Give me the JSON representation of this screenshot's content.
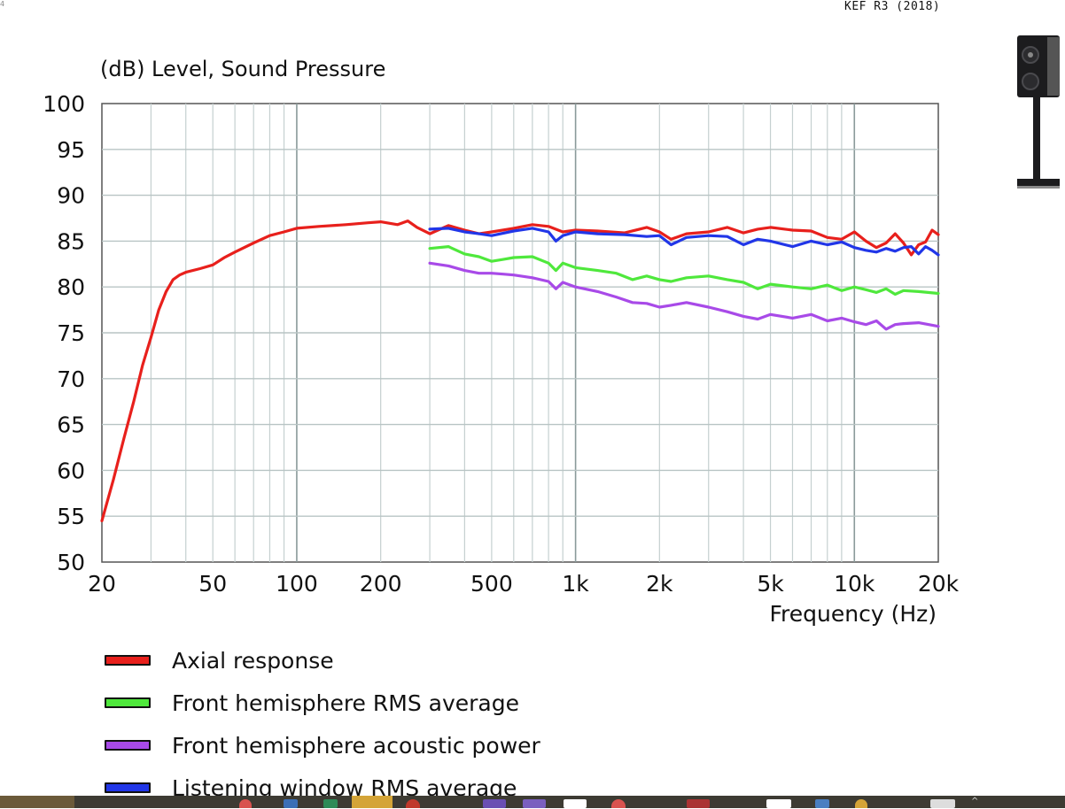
{
  "header": {
    "title": "KEF R3 (2018)",
    "corner_mark": "4"
  },
  "chart_data": {
    "type": "line",
    "title": "(dB)  Level, Sound Pressure",
    "xlabel": "Frequency  (Hz)",
    "ylabel": "(dB)",
    "xscale": "log",
    "xlim": [
      20,
      20000
    ],
    "ylim": [
      50,
      100
    ],
    "yticks": [
      100,
      95,
      90,
      85,
      80,
      75,
      70,
      65,
      60,
      55,
      50
    ],
    "xticks": [
      {
        "value": 20,
        "label": "20"
      },
      {
        "value": 50,
        "label": "50"
      },
      {
        "value": 100,
        "label": "100"
      },
      {
        "value": 200,
        "label": "200"
      },
      {
        "value": 500,
        "label": "500"
      },
      {
        "value": 1000,
        "label": "1k"
      },
      {
        "value": 2000,
        "label": "2k"
      },
      {
        "value": 5000,
        "label": "5k"
      },
      {
        "value": 10000,
        "label": "10k"
      },
      {
        "value": 20000,
        "label": "20k"
      }
    ],
    "grid": true,
    "series": [
      {
        "name": "Axial response",
        "color": "#e8201c",
        "x": [
          20,
          22,
          24,
          26,
          28,
          30,
          32,
          34,
          36,
          38,
          40,
          45,
          50,
          55,
          60,
          70,
          80,
          90,
          100,
          120,
          150,
          180,
          200,
          230,
          250,
          270,
          300,
          350,
          400,
          450,
          500,
          600,
          700,
          800,
          900,
          1000,
          1200,
          1500,
          1800,
          2000,
          2200,
          2500,
          3000,
          3500,
          4000,
          4500,
          5000,
          6000,
          7000,
          8000,
          9000,
          10000,
          11000,
          12000,
          13000,
          14000,
          15000,
          16000,
          17000,
          18000,
          19000,
          20000
        ],
        "y": [
          54.5,
          59.0,
          63.5,
          67.5,
          71.5,
          74.5,
          77.5,
          79.5,
          80.8,
          81.3,
          81.6,
          82.0,
          82.4,
          83.2,
          83.8,
          84.8,
          85.6,
          86.0,
          86.4,
          86.6,
          86.8,
          87.0,
          87.1,
          86.8,
          87.2,
          86.5,
          85.8,
          86.7,
          86.2,
          85.8,
          86.0,
          86.4,
          86.8,
          86.6,
          86.0,
          86.2,
          86.1,
          85.9,
          86.5,
          86.0,
          85.2,
          85.8,
          86.0,
          86.5,
          85.9,
          86.3,
          86.5,
          86.2,
          86.1,
          85.4,
          85.2,
          86.0,
          85.0,
          84.3,
          84.8,
          85.8,
          84.8,
          83.5,
          84.6,
          84.9,
          86.2,
          85.7
        ]
      },
      {
        "name": "Front hemisphere RMS average",
        "color": "#4fe83c",
        "x": [
          300,
          350,
          400,
          450,
          500,
          550,
          600,
          700,
          800,
          850,
          900,
          1000,
          1200,
          1400,
          1600,
          1800,
          2000,
          2200,
          2500,
          3000,
          3500,
          4000,
          4500,
          5000,
          6000,
          7000,
          8000,
          9000,
          10000,
          11000,
          12000,
          13000,
          14000,
          15000,
          17000,
          20000
        ],
        "y": [
          84.2,
          84.4,
          83.6,
          83.3,
          82.8,
          83.0,
          83.2,
          83.3,
          82.6,
          81.8,
          82.6,
          82.1,
          81.8,
          81.5,
          80.8,
          81.2,
          80.8,
          80.6,
          81.0,
          81.2,
          80.8,
          80.5,
          79.8,
          80.3,
          80.0,
          79.8,
          80.2,
          79.6,
          80.0,
          79.7,
          79.4,
          79.8,
          79.2,
          79.6,
          79.5,
          79.3
        ]
      },
      {
        "name": "Front hemisphere acoustic power",
        "color": "#a84ae8",
        "x": [
          300,
          350,
          400,
          450,
          500,
          550,
          600,
          700,
          800,
          850,
          900,
          1000,
          1200,
          1400,
          1600,
          1800,
          2000,
          2200,
          2500,
          3000,
          3500,
          4000,
          4500,
          5000,
          6000,
          7000,
          8000,
          9000,
          10000,
          11000,
          12000,
          13000,
          14000,
          15000,
          17000,
          20000
        ],
        "y": [
          82.6,
          82.3,
          81.8,
          81.5,
          81.5,
          81.4,
          81.3,
          81.0,
          80.6,
          79.8,
          80.5,
          80.0,
          79.5,
          78.9,
          78.3,
          78.2,
          77.8,
          78.0,
          78.3,
          77.8,
          77.3,
          76.8,
          76.5,
          77.0,
          76.6,
          77.0,
          76.3,
          76.6,
          76.2,
          75.9,
          76.3,
          75.4,
          75.9,
          76.0,
          76.1,
          75.7
        ]
      },
      {
        "name": "Listening window RMS average",
        "color": "#2136e8",
        "x": [
          300,
          350,
          400,
          450,
          500,
          600,
          700,
          800,
          850,
          900,
          1000,
          1200,
          1500,
          1800,
          2000,
          2200,
          2500,
          3000,
          3500,
          4000,
          4500,
          5000,
          6000,
          7000,
          8000,
          9000,
          10000,
          11000,
          12000,
          13000,
          14000,
          15000,
          16000,
          17000,
          18000,
          19000,
          20000
        ],
        "y": [
          86.3,
          86.4,
          86.0,
          85.8,
          85.6,
          86.1,
          86.4,
          86.0,
          85.0,
          85.6,
          86.0,
          85.8,
          85.7,
          85.5,
          85.6,
          84.6,
          85.4,
          85.6,
          85.5,
          84.6,
          85.2,
          85.0,
          84.4,
          85.0,
          84.6,
          84.9,
          84.3,
          84.0,
          83.8,
          84.2,
          83.9,
          84.3,
          84.4,
          83.6,
          84.4,
          84.0,
          83.5
        ]
      }
    ]
  },
  "legend": {
    "items": [
      {
        "label": "Axial response",
        "color": "#e8201c"
      },
      {
        "label": "Front hemisphere RMS average",
        "color": "#4fe83c"
      },
      {
        "label": "Front hemisphere acoustic power",
        "color": "#a84ae8"
      },
      {
        "label": "Listening window RMS average",
        "color": "#2136e8"
      }
    ]
  }
}
